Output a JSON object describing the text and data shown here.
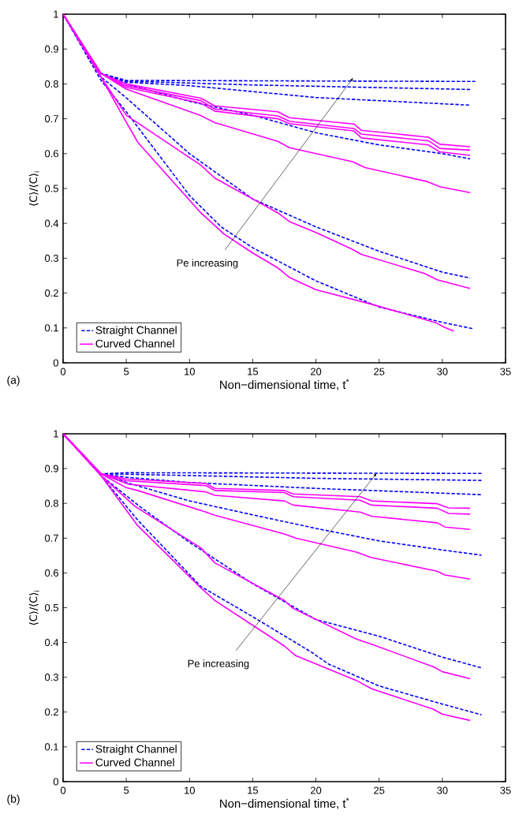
{
  "chart_data": [
    {
      "type": "line",
      "xlabel": "Non−dimensional time, t$^{*}$",
      "ylabel": "⟨C⟩/⟨C⟩$_{i}$",
      "xlim": [
        0,
        35
      ],
      "ylim": [
        0,
        1
      ],
      "xticks": [
        0,
        5,
        10,
        15,
        20,
        25,
        30,
        35
      ],
      "yticks": [
        0,
        0.1,
        0.2,
        0.3,
        0.4,
        0.5,
        0.6,
        0.7,
        0.8,
        0.9,
        1
      ],
      "legend": "bottom left",
      "annotations": [
        "Pe increasing",
        "(a)"
      ],
      "series": [
        {
          "name": "Straight Channel",
          "color": "#0000ff",
          "line_style": "dashed",
          "x": [
            0,
            3,
            5,
            32.6
          ],
          "values": [
            1,
            0.83,
            0.81,
            0.807
          ]
        },
        {
          "color": "#0000ff",
          "line_style": "dashed",
          "x": [
            0,
            3,
            5,
            15,
            32.2
          ],
          "values": [
            1,
            0.83,
            0.808,
            0.797,
            0.784
          ]
        },
        {
          "color": "#0000ff",
          "line_style": "dashed",
          "x": [
            0,
            3,
            5,
            10,
            20,
            32.2
          ],
          "values": [
            1,
            0.83,
            0.805,
            0.795,
            0.761,
            0.739
          ]
        },
        {
          "color": "#0000ff",
          "line_style": "dashed",
          "x": [
            0,
            3,
            5,
            10,
            15,
            20,
            25,
            30,
            32.2
          ],
          "values": [
            1,
            0.83,
            0.8,
            0.75,
            0.71,
            0.66,
            0.625,
            0.6,
            0.585
          ]
        },
        {
          "color": "#0000ff",
          "line_style": "dashed",
          "x": [
            0,
            3,
            5,
            10,
            15,
            20,
            25,
            30,
            32.2
          ],
          "values": [
            1,
            0.82,
            0.76,
            0.6,
            0.47,
            0.39,
            0.32,
            0.26,
            0.243
          ]
        },
        {
          "color": "#0000ff",
          "line_style": "dashed",
          "x": [
            0,
            3,
            5,
            7.5,
            10,
            12.5,
            15,
            20,
            25,
            30,
            32.4
          ],
          "values": [
            1,
            0.81,
            0.72,
            0.6,
            0.48,
            0.39,
            0.33,
            0.235,
            0.16,
            0.116,
            0.098
          ]
        },
        {
          "name": "Curved Channel",
          "color": "#ff00ff",
          "line_style": "solid",
          "x": [
            0,
            3,
            5,
            10.9,
            12,
            17,
            17.9,
            23,
            23.6,
            28.9,
            29.8,
            32.2
          ],
          "values": [
            1,
            0.83,
            0.8,
            0.759,
            0.737,
            0.72,
            0.703,
            0.685,
            0.667,
            0.647,
            0.627,
            0.62
          ]
        },
        {
          "color": "#ff00ff",
          "line_style": "solid",
          "x": [
            0,
            3,
            5,
            10.9,
            12,
            17,
            17.9,
            23,
            23.6,
            28.9,
            29.8,
            32.2
          ],
          "values": [
            1,
            0.83,
            0.795,
            0.752,
            0.728,
            0.708,
            0.693,
            0.672,
            0.656,
            0.637,
            0.615,
            0.61
          ]
        },
        {
          "color": "#ff00ff",
          "line_style": "solid",
          "x": [
            0,
            3,
            5,
            10.9,
            12,
            17,
            17.9,
            23,
            23.6,
            28.9,
            29.8,
            32.2
          ],
          "values": [
            1,
            0.83,
            0.79,
            0.745,
            0.722,
            0.7,
            0.686,
            0.665,
            0.645,
            0.625,
            0.605,
            0.595
          ]
        },
        {
          "color": "#ff00ff",
          "line_style": "solid",
          "x": [
            0,
            3,
            5,
            10.9,
            12,
            17,
            17.9,
            22.9,
            23.9,
            28.8,
            29.8,
            32.2
          ],
          "values": [
            1,
            0.83,
            0.785,
            0.709,
            0.689,
            0.635,
            0.617,
            0.577,
            0.56,
            0.52,
            0.505,
            0.488
          ]
        },
        {
          "color": "#ff00ff",
          "line_style": "solid",
          "x": [
            0,
            3,
            5,
            10.9,
            12,
            17,
            17.9,
            20,
            22.8,
            23.6,
            28.6,
            29.6,
            32.2
          ],
          "values": [
            1,
            0.82,
            0.71,
            0.567,
            0.53,
            0.43,
            0.405,
            0.374,
            0.327,
            0.311,
            0.256,
            0.238,
            0.213
          ]
        },
        {
          "color": "#ff00ff",
          "line_style": "solid",
          "x": [
            0,
            3,
            5,
            5.9,
            10.9,
            12,
            12.7,
            15,
            17,
            17.9,
            20,
            24.6,
            29.5,
            30.1,
            30.9
          ],
          "values": [
            1,
            0.82,
            0.69,
            0.633,
            0.43,
            0.394,
            0.37,
            0.315,
            0.272,
            0.245,
            0.21,
            0.166,
            0.115,
            0.103,
            0.091
          ]
        }
      ]
    },
    {
      "type": "line",
      "xlabel": "Non−dimensional time, t$^{*}$",
      "ylabel": "⟨C⟩/⟨C⟩$_{i}$",
      "xlim": [
        0,
        35
      ],
      "ylim": [
        0,
        1
      ],
      "xticks": [
        0,
        5,
        10,
        15,
        20,
        25,
        30,
        35
      ],
      "yticks": [
        0,
        0.1,
        0.2,
        0.3,
        0.4,
        0.5,
        0.6,
        0.7,
        0.8,
        0.9,
        1
      ],
      "legend": "bottom left",
      "annotations": [
        "Pe increasing",
        "(b)"
      ],
      "series": [
        {
          "name": "Straight Channel",
          "color": "#0000ff",
          "line_style": "dashed",
          "x": [
            0,
            3,
            5,
            33.1
          ],
          "values": [
            1,
            0.885,
            0.888,
            0.886
          ]
        },
        {
          "color": "#0000ff",
          "line_style": "dashed",
          "x": [
            0,
            3,
            10,
            20,
            33.1
          ],
          "values": [
            1,
            0.885,
            0.88,
            0.872,
            0.866
          ]
        },
        {
          "color": "#0000ff",
          "line_style": "dashed",
          "x": [
            0,
            3,
            5,
            10,
            20,
            33.1
          ],
          "values": [
            1,
            0.885,
            0.875,
            0.86,
            0.843,
            0.825
          ]
        },
        {
          "color": "#0000ff",
          "line_style": "dashed",
          "x": [
            0,
            3,
            5,
            10,
            15,
            20,
            25,
            30,
            33.1
          ],
          "values": [
            1,
            0.885,
            0.86,
            0.807,
            0.767,
            0.728,
            0.692,
            0.666,
            0.651
          ]
        },
        {
          "color": "#0000ff",
          "line_style": "dashed",
          "x": [
            0,
            3,
            6.1,
            10,
            15,
            20,
            25,
            30,
            33.1
          ],
          "values": [
            1,
            0.88,
            0.79,
            0.688,
            0.569,
            0.466,
            0.418,
            0.358,
            0.327
          ]
        },
        {
          "color": "#0000ff",
          "line_style": "dashed",
          "x": [
            0,
            3,
            5.9,
            10.9,
            15,
            19.7,
            21,
            25,
            30,
            33.1
          ],
          "values": [
            1,
            0.88,
            0.752,
            0.561,
            0.474,
            0.371,
            0.338,
            0.275,
            0.223,
            0.192
          ]
        },
        {
          "name": "Curved Channel",
          "color": "#ff00ff",
          "line_style": "solid",
          "x": [
            0,
            3,
            5,
            11.3,
            12,
            17.5,
            18.2,
            23.5,
            24.4,
            29.6,
            30.5,
            32.2
          ],
          "values": [
            1,
            0.885,
            0.87,
            0.857,
            0.843,
            0.837,
            0.827,
            0.819,
            0.807,
            0.799,
            0.787,
            0.786
          ]
        },
        {
          "color": "#ff00ff",
          "line_style": "solid",
          "x": [
            0,
            3,
            5,
            11.3,
            12,
            17.5,
            18.2,
            23.5,
            24.4,
            29.6,
            30.5,
            32.2
          ],
          "values": [
            1,
            0.885,
            0.865,
            0.851,
            0.837,
            0.831,
            0.819,
            0.809,
            0.795,
            0.786,
            0.771,
            0.769
          ]
        },
        {
          "color": "#ff00ff",
          "line_style": "solid",
          "x": [
            0,
            3,
            5.2,
            11.3,
            12,
            17.5,
            18.2,
            23.5,
            24.4,
            29.6,
            30.2,
            32.2
          ],
          "values": [
            1,
            0.885,
            0.855,
            0.833,
            0.823,
            0.807,
            0.795,
            0.775,
            0.763,
            0.744,
            0.732,
            0.725
          ]
        },
        {
          "color": "#ff00ff",
          "line_style": "solid",
          "x": [
            0,
            3,
            5,
            5.9,
            11.3,
            12,
            17.5,
            18.4,
            23.2,
            24.4,
            29.6,
            30.2,
            32.2
          ],
          "values": [
            1,
            0.885,
            0.845,
            0.837,
            0.775,
            0.766,
            0.712,
            0.7,
            0.66,
            0.644,
            0.605,
            0.594,
            0.582
          ]
        },
        {
          "color": "#ff00ff",
          "line_style": "solid",
          "x": [
            0,
            3,
            5.7,
            10.9,
            12,
            17.5,
            18.2,
            23.2,
            24.4,
            29.3,
            30,
            32.2
          ],
          "values": [
            1,
            0.88,
            0.791,
            0.672,
            0.629,
            0.521,
            0.498,
            0.41,
            0.395,
            0.33,
            0.316,
            0.296
          ]
        },
        {
          "color": "#ff00ff",
          "line_style": "solid",
          "x": [
            0,
            3,
            5.9,
            10.9,
            12,
            17.5,
            18.4,
            23.2,
            24.4,
            29.3,
            30,
            32.2
          ],
          "values": [
            1,
            0.88,
            0.736,
            0.557,
            0.521,
            0.39,
            0.362,
            0.291,
            0.267,
            0.208,
            0.194,
            0.176
          ]
        }
      ]
    }
  ]
}
